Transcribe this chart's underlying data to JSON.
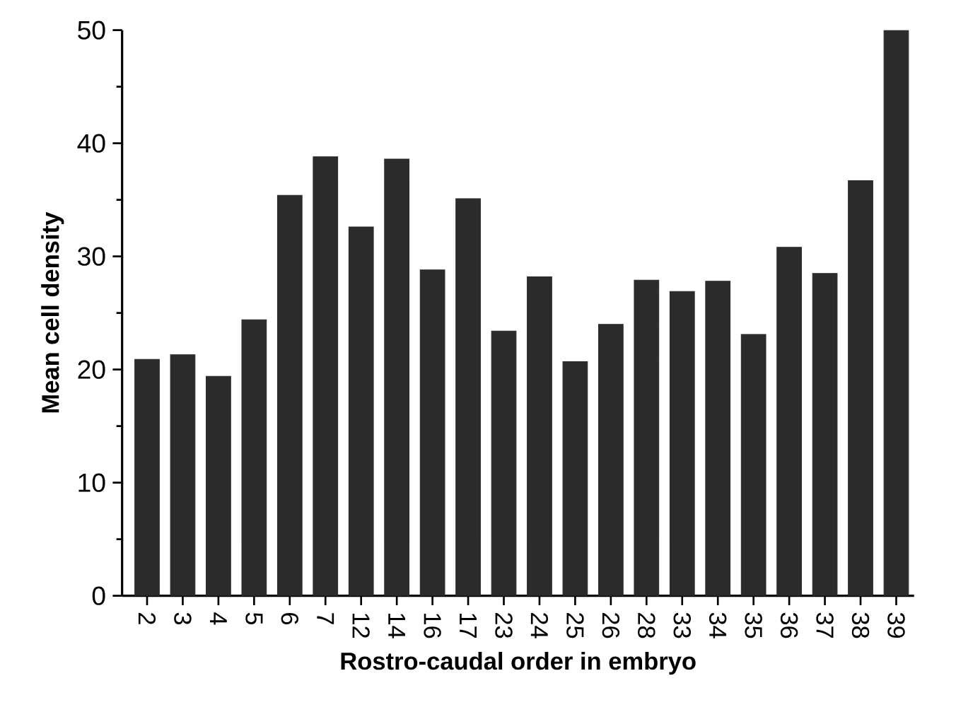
{
  "chart_data": {
    "type": "bar",
    "xlabel": "Rostro-caudal order in embryo",
    "ylabel": "Mean cell density",
    "categories": [
      "2",
      "3",
      "4",
      "5",
      "6",
      "7",
      "12",
      "14",
      "16",
      "17",
      "23",
      "24",
      "25",
      "26",
      "28",
      "33",
      "34",
      "35",
      "36",
      "37",
      "38",
      "39"
    ],
    "values": [
      20.9,
      21.3,
      19.4,
      24.4,
      35.4,
      38.8,
      32.6,
      38.6,
      28.8,
      35.1,
      23.4,
      28.2,
      20.7,
      24.0,
      27.9,
      26.9,
      27.8,
      23.1,
      30.8,
      28.5,
      36.7,
      50
    ],
    "color": "#2b2b2b",
    "ylim": [
      0,
      50
    ],
    "yticks": [
      0,
      10,
      20,
      30,
      40,
      50
    ],
    "grid": false
  }
}
